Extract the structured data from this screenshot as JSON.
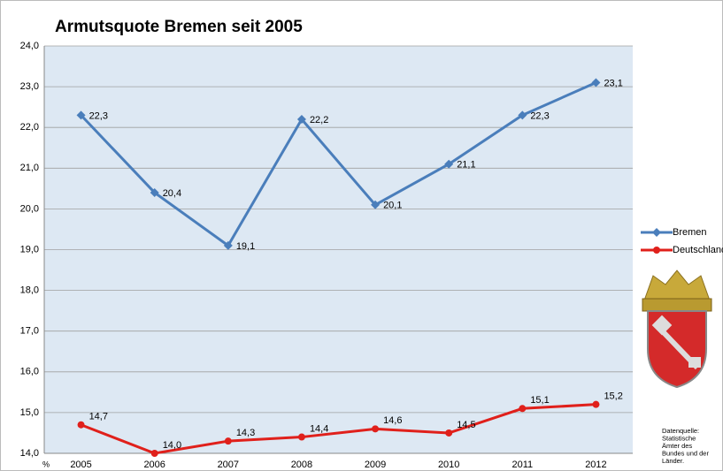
{
  "chart_data": {
    "type": "line",
    "title": "Armutsquote Bremen seit 2005",
    "y_unit": "%",
    "categories": [
      "2005",
      "2006",
      "2007",
      "2008",
      "2009",
      "2010",
      "2011",
      "2012"
    ],
    "series": [
      {
        "name": "Bremen",
        "color": "#4a7ebb",
        "marker": "diamond",
        "values": [
          22.3,
          20.4,
          19.1,
          22.2,
          20.1,
          21.1,
          22.3,
          23.1
        ],
        "value_labels": [
          "22,3",
          "20,4",
          "19,1",
          "22,2",
          "20,1",
          "21,1",
          "22,3",
          "23,1"
        ]
      },
      {
        "name": "Deutschland",
        "color": "#e0201b",
        "marker": "circle",
        "values": [
          14.7,
          14.0,
          14.3,
          14.4,
          14.6,
          14.5,
          15.1,
          15.2
        ],
        "value_labels": [
          "14,7",
          "14,0",
          "14,3",
          "14,4",
          "14,6",
          "14,5",
          "15,1",
          "15,2"
        ]
      }
    ],
    "ylim": [
      14,
      24
    ],
    "yticks": [
      {
        "value": 14,
        "label": "14,0"
      },
      {
        "value": 15,
        "label": "15,0"
      },
      {
        "value": 16,
        "label": "16,0"
      },
      {
        "value": 17,
        "label": "17,0"
      },
      {
        "value": 18,
        "label": "18,0"
      },
      {
        "value": 19,
        "label": "19,0"
      },
      {
        "value": 20,
        "label": "20,0"
      },
      {
        "value": 21,
        "label": "21,0"
      },
      {
        "value": 22,
        "label": "22,0"
      },
      {
        "value": 23,
        "label": "23,0"
      },
      {
        "value": 24,
        "label": "24,0"
      }
    ],
    "grid": true,
    "legend": "right",
    "source": [
      "Datenquelle:",
      "Statistische",
      "Ämter des",
      "Bundes und der",
      "Länder."
    ]
  }
}
